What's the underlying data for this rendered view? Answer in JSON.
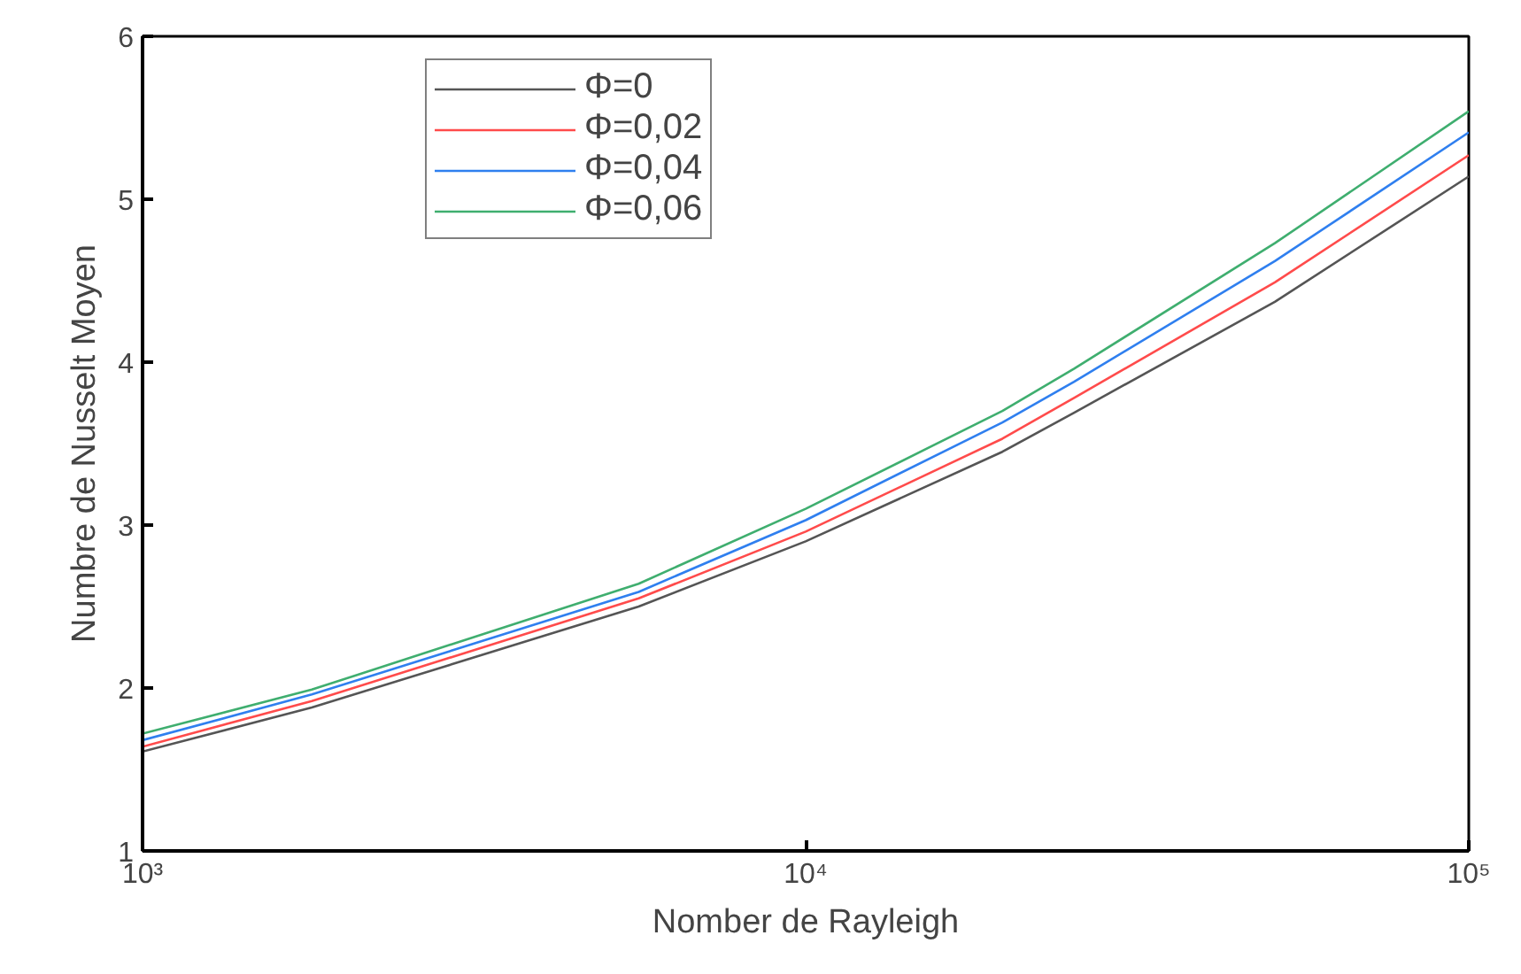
{
  "chart_data": {
    "type": "line",
    "xlabel": "Nomber de Rayleigh",
    "ylabel": "Numbre de Nusselt Moyen",
    "x": [
      1000,
      1800,
      5600,
      10000,
      19800,
      25400,
      51000,
      100000
    ],
    "series": [
      {
        "name": "Φ=0",
        "color": "#555555",
        "values": [
          1.61,
          1.88,
          2.5,
          2.9,
          3.45,
          3.69,
          4.37,
          5.14
        ]
      },
      {
        "name": "Φ=0,02",
        "color": "#ff4b4b",
        "values": [
          1.64,
          1.92,
          2.55,
          2.96,
          3.53,
          3.78,
          4.49,
          5.27
        ]
      },
      {
        "name": "Φ=0,04",
        "color": "#2f7fef",
        "values": [
          1.68,
          1.96,
          2.59,
          3.03,
          3.63,
          3.88,
          4.62,
          5.41
        ]
      },
      {
        "name": "Φ=0,06",
        "color": "#3fae6f",
        "values": [
          1.72,
          1.99,
          2.64,
          3.1,
          3.7,
          3.96,
          4.73,
          5.54
        ]
      }
    ],
    "log": "x",
    "xlim": [
      1000,
      100000
    ],
    "xticks": [
      {
        "value": 1000,
        "label": "10³"
      },
      {
        "value": 10000,
        "label": "10⁴"
      },
      {
        "value": 100000,
        "label": "10⁵"
      }
    ],
    "ylim": [
      1,
      6
    ],
    "yticks": [
      1,
      2,
      3,
      4,
      5,
      6
    ],
    "grid": false,
    "legend": "top",
    "line_style": "solid"
  }
}
